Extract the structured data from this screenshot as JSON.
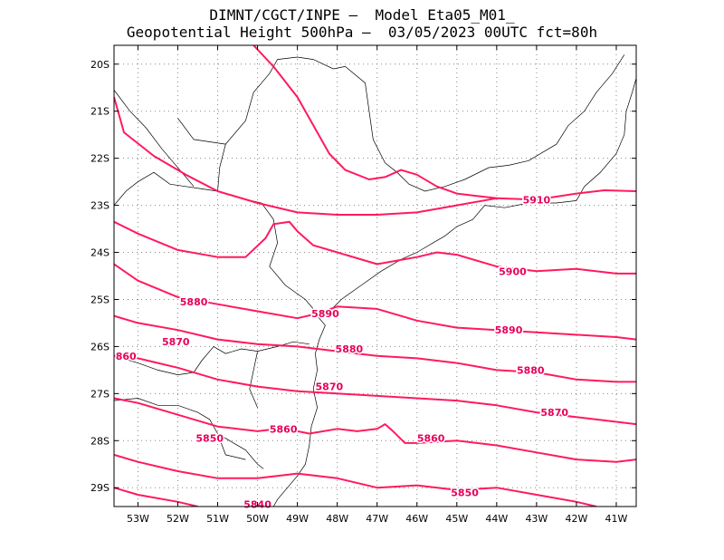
{
  "title_line1": "DIMNT/CGCT/INPE –  Model Eta05_M01_",
  "title_line2": "Geopotential Height 500hPa –  03/05/2023 00UTC fct=80h",
  "colors": {
    "contour": "#ff1a5e",
    "contour_label": "#e8005a",
    "coast": "#000000",
    "grid": "#888888",
    "frame": "#000000"
  },
  "map": {
    "lon_range": [
      -53.6,
      -40.5
    ],
    "lat_range": [
      -29.4,
      -19.6
    ],
    "lon_ticks": [
      {
        "value": -53,
        "label": "53W"
      },
      {
        "value": -52,
        "label": "52W"
      },
      {
        "value": -51,
        "label": "51W"
      },
      {
        "value": -50,
        "label": "50W"
      },
      {
        "value": -49,
        "label": "49W"
      },
      {
        "value": -48,
        "label": "48W"
      },
      {
        "value": -47,
        "label": "47W"
      },
      {
        "value": -46,
        "label": "46W"
      },
      {
        "value": -45,
        "label": "45W"
      },
      {
        "value": -44,
        "label": "44W"
      },
      {
        "value": -43,
        "label": "43W"
      },
      {
        "value": -42,
        "label": "42W"
      },
      {
        "value": -41,
        "label": "41W"
      }
    ],
    "lat_ticks": [
      {
        "value": -20,
        "label": "20S"
      },
      {
        "value": -21,
        "label": "21S"
      },
      {
        "value": -22,
        "label": "22S"
      },
      {
        "value": -23,
        "label": "23S"
      },
      {
        "value": -24,
        "label": "24S"
      },
      {
        "value": -25,
        "label": "25S"
      },
      {
        "value": -26,
        "label": "26S"
      },
      {
        "value": -27,
        "label": "27S"
      },
      {
        "value": -28,
        "label": "28S"
      },
      {
        "value": -29,
        "label": "29S"
      }
    ],
    "grid": true
  },
  "contours": [
    {
      "value": 5910,
      "points": [
        [
          -53.6,
          -20.7
        ],
        [
          -53.35,
          -21.45
        ],
        [
          -52.6,
          -21.95
        ],
        [
          -51.8,
          -22.35
        ],
        [
          -51.0,
          -22.7
        ],
        [
          -50.0,
          -22.95
        ],
        [
          -49.0,
          -23.15
        ],
        [
          -48.0,
          -23.2
        ],
        [
          -47.0,
          -23.2
        ],
        [
          -46.0,
          -23.15
        ],
        [
          -45.0,
          -23.0
        ],
        [
          -44.0,
          -22.85
        ],
        [
          -43.0,
          -22.88
        ],
        [
          -42.0,
          -22.75
        ],
        [
          -41.3,
          -22.68
        ],
        [
          -40.5,
          -22.7
        ]
      ]
    },
    {
      "value": 5910,
      "points": [
        [
          -50.1,
          -19.6
        ],
        [
          -49.6,
          -20.05
        ],
        [
          -49.0,
          -20.7
        ],
        [
          -48.6,
          -21.3
        ],
        [
          -48.2,
          -21.9
        ],
        [
          -47.8,
          -22.25
        ],
        [
          -47.2,
          -22.45
        ],
        [
          -46.8,
          -22.4
        ],
        [
          -46.4,
          -22.25
        ],
        [
          -46.0,
          -22.35
        ],
        [
          -45.5,
          -22.6
        ],
        [
          -45.0,
          -22.75
        ],
        [
          -44.5,
          -22.8
        ],
        [
          -44.0,
          -22.85
        ]
      ]
    },
    {
      "value": 5900,
      "points": [
        [
          -53.6,
          -23.35
        ],
        [
          -53.0,
          -23.6
        ],
        [
          -52.0,
          -23.95
        ],
        [
          -51.0,
          -24.1
        ],
        [
          -50.3,
          -24.1
        ],
        [
          -49.8,
          -23.7
        ],
        [
          -49.6,
          -23.4
        ],
        [
          -49.2,
          -23.35
        ],
        [
          -49.0,
          -23.55
        ],
        [
          -48.6,
          -23.85
        ],
        [
          -48.0,
          -24.0
        ],
        [
          -47.0,
          -24.25
        ],
        [
          -46.0,
          -24.1
        ],
        [
          -45.5,
          -24.0
        ],
        [
          -45.0,
          -24.05
        ],
        [
          -44.0,
          -24.3
        ],
        [
          -43.0,
          -24.4
        ],
        [
          -42.0,
          -24.35
        ],
        [
          -41.0,
          -24.45
        ],
        [
          -40.5,
          -24.45
        ]
      ]
    },
    {
      "value": 5890,
      "points": [
        [
          -53.6,
          -24.25
        ],
        [
          -53.0,
          -24.6
        ],
        [
          -52.0,
          -24.95
        ],
        [
          -51.0,
          -25.1
        ],
        [
          -50.0,
          -25.25
        ],
        [
          -49.0,
          -25.4
        ],
        [
          -48.5,
          -25.3
        ],
        [
          -48.0,
          -25.15
        ],
        [
          -47.0,
          -25.2
        ],
        [
          -46.0,
          -25.45
        ],
        [
          -45.0,
          -25.6
        ],
        [
          -44.0,
          -25.65
        ],
        [
          -43.0,
          -25.7
        ],
        [
          -42.0,
          -25.75
        ],
        [
          -41.0,
          -25.8
        ],
        [
          -40.5,
          -25.85
        ]
      ]
    },
    {
      "value": 5880,
      "points": [
        [
          -53.6,
          -25.35
        ],
        [
          -53.0,
          -25.5
        ],
        [
          -52.0,
          -25.65
        ],
        [
          -51.0,
          -25.85
        ],
        [
          -50.0,
          -25.95
        ],
        [
          -49.0,
          -26.0
        ],
        [
          -48.0,
          -26.1
        ],
        [
          -47.0,
          -26.2
        ],
        [
          -46.0,
          -26.25
        ],
        [
          -45.0,
          -26.35
        ],
        [
          -44.0,
          -26.5
        ],
        [
          -43.0,
          -26.55
        ],
        [
          -42.0,
          -26.7
        ],
        [
          -41.0,
          -26.75
        ],
        [
          -40.5,
          -26.75
        ]
      ]
    },
    {
      "value": 5870,
      "points": [
        [
          -53.6,
          -26.2
        ],
        [
          -53.0,
          -26.25
        ],
        [
          -52.5,
          -26.35
        ],
        [
          -52.0,
          -26.45
        ],
        [
          -51.0,
          -26.7
        ],
        [
          -50.0,
          -26.85
        ],
        [
          -49.0,
          -26.95
        ],
        [
          -48.0,
          -27.0
        ],
        [
          -47.0,
          -27.05
        ],
        [
          -46.0,
          -27.1
        ],
        [
          -45.0,
          -27.15
        ],
        [
          -44.0,
          -27.25
        ],
        [
          -43.0,
          -27.4
        ],
        [
          -42.0,
          -27.5
        ],
        [
          -41.0,
          -27.6
        ],
        [
          -40.5,
          -27.65
        ]
      ]
    },
    {
      "value": 5860,
      "points": [
        [
          -53.6,
          -27.1
        ],
        [
          -53.0,
          -27.2
        ],
        [
          -52.0,
          -27.45
        ],
        [
          -51.0,
          -27.7
        ],
        [
          -50.0,
          -27.8
        ],
        [
          -49.5,
          -27.75
        ],
        [
          -49.0,
          -27.8
        ],
        [
          -48.7,
          -27.85
        ],
        [
          -48.0,
          -27.75
        ],
        [
          -47.5,
          -27.8
        ],
        [
          -47.0,
          -27.75
        ],
        [
          -46.8,
          -27.65
        ],
        [
          -46.6,
          -27.8
        ],
        [
          -46.3,
          -28.05
        ],
        [
          -46.0,
          -28.05
        ],
        [
          -45.0,
          -28.0
        ],
        [
          -44.0,
          -28.1
        ],
        [
          -43.0,
          -28.25
        ],
        [
          -42.0,
          -28.4
        ],
        [
          -41.0,
          -28.45
        ],
        [
          -40.5,
          -28.4
        ]
      ]
    },
    {
      "value": 5850,
      "points": [
        [
          -53.6,
          -28.3
        ],
        [
          -53.0,
          -28.45
        ],
        [
          -52.0,
          -28.65
        ],
        [
          -51.0,
          -28.8
        ],
        [
          -50.0,
          -28.8
        ],
        [
          -49.0,
          -28.7
        ],
        [
          -48.0,
          -28.8
        ],
        [
          -47.0,
          -29.0
        ],
        [
          -46.0,
          -28.95
        ],
        [
          -45.0,
          -29.05
        ],
        [
          -44.0,
          -29.0
        ],
        [
          -43.0,
          -29.15
        ],
        [
          -42.0,
          -29.3
        ],
        [
          -41.5,
          -29.4
        ]
      ]
    },
    {
      "value": 5840,
      "points": [
        [
          -53.6,
          -29.0
        ],
        [
          -53.0,
          -29.15
        ],
        [
          -52.0,
          -29.3
        ],
        [
          -51.5,
          -29.4
        ]
      ]
    },
    {
      "value": 5840,
      "points": [
        [
          -50.2,
          -29.35
        ],
        [
          -50.0,
          -29.4
        ]
      ]
    }
  ],
  "contour_labels": [
    {
      "text": "5910",
      "lon": -43.0,
      "lat": -22.88
    },
    {
      "text": "5900",
      "lon": -43.6,
      "lat": -24.4
    },
    {
      "text": "5890",
      "lon": -48.3,
      "lat": -25.3
    },
    {
      "text": "5890",
      "lon": -43.7,
      "lat": -25.65
    },
    {
      "text": "5880",
      "lon": -51.6,
      "lat": -25.05
    },
    {
      "text": "5880",
      "lon": -47.7,
      "lat": -26.05
    },
    {
      "text": "5880",
      "lon": -43.15,
      "lat": -26.5
    },
    {
      "text": "5870",
      "lon": -52.05,
      "lat": -25.9
    },
    {
      "text": "5870",
      "lon": -48.2,
      "lat": -26.85
    },
    {
      "text": "5870",
      "lon": -42.55,
      "lat": -27.4
    },
    {
      "text": "860",
      "lon": -53.3,
      "lat": -26.2
    },
    {
      "text": "5860",
      "lon": -49.35,
      "lat": -27.75
    },
    {
      "text": "5860",
      "lon": -45.65,
      "lat": -27.95
    },
    {
      "text": "5850",
      "lon": -51.2,
      "lat": -27.95
    },
    {
      "text": "5850",
      "lon": -44.8,
      "lat": -29.1
    },
    {
      "text": "5840",
      "lon": -50.0,
      "lat": -29.35
    }
  ],
  "coastline": [
    [
      [
        -53.6,
        -27.15
      ],
      [
        -53.0,
        -27.1
      ],
      [
        -52.5,
        -27.25
      ],
      [
        -52.0,
        -27.25
      ],
      [
        -51.5,
        -27.4
      ],
      [
        -51.2,
        -27.55
      ],
      [
        -51.0,
        -27.85
      ],
      [
        -50.6,
        -28.05
      ],
      [
        -50.3,
        -28.2
      ],
      [
        -50.0,
        -28.5
      ],
      [
        -49.85,
        -28.6
      ]
    ],
    [
      [
        -53.6,
        -26.2
      ],
      [
        -53.0,
        -26.35
      ],
      [
        -52.5,
        -26.5
      ],
      [
        -52.0,
        -26.6
      ],
      [
        -51.6,
        -26.55
      ],
      [
        -51.4,
        -26.3
      ],
      [
        -51.1,
        -26.0
      ],
      [
        -50.8,
        -26.15
      ],
      [
        -50.4,
        -26.05
      ],
      [
        -50.0,
        -26.1
      ],
      [
        -49.5,
        -26.0
      ],
      [
        -49.1,
        -25.9
      ],
      [
        -48.7,
        -25.95
      ]
    ],
    [
      [
        -48.5,
        -25.35
      ],
      [
        -48.3,
        -25.55
      ],
      [
        -48.45,
        -25.85
      ],
      [
        -48.55,
        -26.15
      ],
      [
        -48.5,
        -26.5
      ],
      [
        -48.6,
        -26.9
      ],
      [
        -48.5,
        -27.3
      ],
      [
        -48.65,
        -27.7
      ],
      [
        -48.7,
        -28.1
      ],
      [
        -48.8,
        -28.5
      ],
      [
        -49.0,
        -28.75
      ],
      [
        -49.3,
        -29.05
      ],
      [
        -49.5,
        -29.25
      ],
      [
        -49.6,
        -29.4
      ]
    ],
    [
      [
        -48.25,
        -25.3
      ],
      [
        -47.9,
        -25.0
      ],
      [
        -47.4,
        -24.7
      ],
      [
        -46.9,
        -24.4
      ],
      [
        -46.4,
        -24.15
      ],
      [
        -46.0,
        -24.0
      ],
      [
        -45.6,
        -23.8
      ],
      [
        -45.3,
        -23.65
      ],
      [
        -45.0,
        -23.45
      ],
      [
        -44.6,
        -23.3
      ],
      [
        -44.3,
        -23.0
      ],
      [
        -43.8,
        -23.05
      ],
      [
        -43.2,
        -22.95
      ],
      [
        -42.5,
        -22.95
      ],
      [
        -42.0,
        -22.9
      ],
      [
        -41.8,
        -22.6
      ],
      [
        -41.4,
        -22.3
      ],
      [
        -41.0,
        -21.9
      ],
      [
        -40.8,
        -21.5
      ],
      [
        -40.75,
        -21.0
      ],
      [
        -40.6,
        -20.6
      ],
      [
        -40.5,
        -20.3
      ]
    ],
    [
      [
        -53.6,
        -23.0
      ],
      [
        -53.3,
        -22.7
      ],
      [
        -53.0,
        -22.5
      ],
      [
        -52.6,
        -22.3
      ],
      [
        -52.2,
        -22.55
      ],
      [
        -51.8,
        -22.6
      ],
      [
        -51.4,
        -22.65
      ],
      [
        -51.0,
        -22.7
      ],
      [
        -50.4,
        -22.85
      ],
      [
        -49.9,
        -22.95
      ],
      [
        -49.6,
        -23.3
      ],
      [
        -49.5,
        -23.8
      ],
      [
        -49.7,
        -24.3
      ],
      [
        -49.3,
        -24.7
      ],
      [
        -48.8,
        -25.0
      ],
      [
        -48.5,
        -25.3
      ]
    ],
    [
      [
        -53.6,
        -20.55
      ],
      [
        -53.2,
        -21.0
      ],
      [
        -52.8,
        -21.35
      ],
      [
        -52.4,
        -21.8
      ],
      [
        -52.1,
        -22.1
      ],
      [
        -51.8,
        -22.4
      ],
      [
        -51.6,
        -22.6
      ]
    ],
    [
      [
        -51.0,
        -22.7
      ],
      [
        -50.95,
        -22.2
      ],
      [
        -50.8,
        -21.7
      ],
      [
        -50.3,
        -21.2
      ],
      [
        -50.1,
        -20.6
      ],
      [
        -49.7,
        -20.2
      ],
      [
        -49.5,
        -19.9
      ],
      [
        -49.0,
        -19.85
      ],
      [
        -48.6,
        -19.9
      ],
      [
        -48.1,
        -20.1
      ],
      [
        -47.8,
        -20.05
      ]
    ],
    [
      [
        -47.8,
        -20.05
      ],
      [
        -47.3,
        -20.4
      ],
      [
        -47.2,
        -21.0
      ],
      [
        -47.1,
        -21.6
      ],
      [
        -46.8,
        -22.1
      ],
      [
        -46.5,
        -22.3
      ],
      [
        -46.2,
        -22.55
      ],
      [
        -45.8,
        -22.7
      ],
      [
        -45.3,
        -22.6
      ],
      [
        -44.8,
        -22.45
      ],
      [
        -44.2,
        -22.2
      ],
      [
        -43.7,
        -22.15
      ],
      [
        -43.2,
        -22.05
      ],
      [
        -42.5,
        -21.7
      ],
      [
        -42.2,
        -21.3
      ],
      [
        -41.8,
        -21.0
      ],
      [
        -41.5,
        -20.6
      ],
      [
        -41.1,
        -20.2
      ],
      [
        -40.8,
        -19.8
      ]
    ],
    [
      [
        -50.8,
        -21.7
      ],
      [
        -51.6,
        -21.6
      ],
      [
        -52.0,
        -21.15
      ]
    ],
    [
      [
        -51.0,
        -27.85
      ],
      [
        -50.8,
        -28.3
      ],
      [
        -50.3,
        -28.4
      ]
    ],
    [
      [
        -50.0,
        -26.1
      ],
      [
        -50.1,
        -26.5
      ],
      [
        -50.2,
        -26.9
      ],
      [
        -50.0,
        -27.3
      ]
    ]
  ]
}
